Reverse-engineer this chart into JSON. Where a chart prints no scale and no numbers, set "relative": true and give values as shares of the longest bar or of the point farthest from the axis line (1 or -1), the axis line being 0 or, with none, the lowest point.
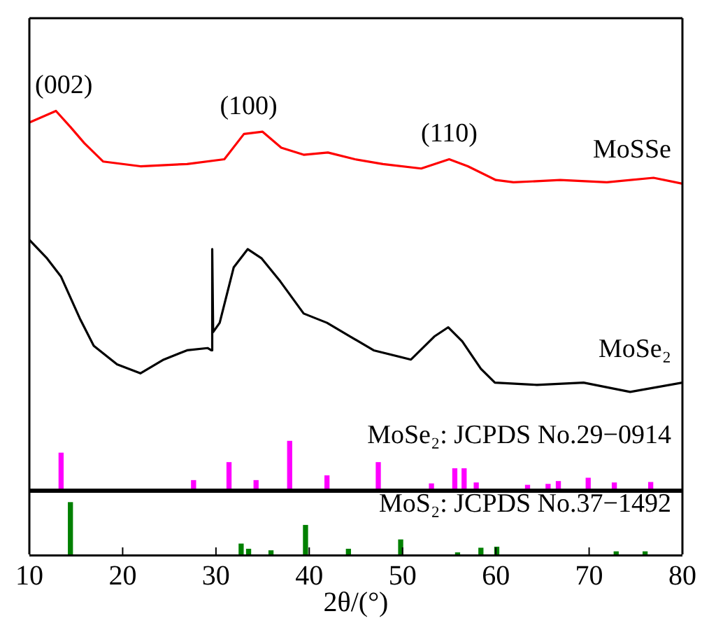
{
  "chart_data": [
    {
      "type": "line",
      "relative": true,
      "xlim": [
        10,
        80
      ],
      "tick_labels": false,
      "legend": false,
      "annotations": [
        {
          "text": "(002)",
          "x": 12.85,
          "y": 1.0
        },
        {
          "text": "(100)",
          "x": 33.5,
          "y": 0.926
        },
        {
          "text": "(110)",
          "x": 55,
          "y": 0.828
        }
      ],
      "series": [
        {
          "name": "MoSSe",
          "color": "#ff0000",
          "x": [
            10,
            12.85,
            14.4,
            15.9,
            17.9,
            21.9,
            26.9,
            30.9,
            33,
            35,
            37,
            39.4,
            42,
            44.9,
            47.9,
            52,
            55,
            57,
            60,
            61.9,
            66.9,
            71.9,
            76.9,
            80
          ],
          "values": [
            0.959,
            1.0,
            0.943,
            0.885,
            0.82,
            0.803,
            0.811,
            0.828,
            0.918,
            0.926,
            0.869,
            0.844,
            0.852,
            0.828,
            0.811,
            0.795,
            0.828,
            0.803,
            0.754,
            0.746,
            0.754,
            0.746,
            0.762,
            0.741
          ]
        },
        {
          "name": "MoSe₂",
          "color": "#000000",
          "x": [
            10,
            11.9,
            13.4,
            15.4,
            16.9,
            19.4,
            21.9,
            24.4,
            26.9,
            29.1,
            29.5,
            29.6,
            29.7,
            30.4,
            31.9,
            33.4,
            34.9,
            36.9,
            39.4,
            41.9,
            44.4,
            46.9,
            50.9,
            53.4,
            54.9,
            56.4,
            58.4,
            59.9,
            64.4,
            69.4,
            74.4,
            80
          ],
          "values": [
            0.541,
            0.475,
            0.41,
            0.262,
            0.164,
            0.098,
            0.066,
            0.115,
            0.148,
            0.156,
            0.148,
            0.508,
            0.213,
            0.246,
            0.443,
            0.508,
            0.475,
            0.393,
            0.279,
            0.246,
            0.197,
            0.148,
            0.115,
            0.197,
            0.23,
            0.18,
            0.082,
            0.033,
            0.025,
            0.033,
            0,
            0.033
          ]
        }
      ]
    },
    {
      "type": "bar",
      "relative": true,
      "xlim": [
        10,
        80
      ],
      "tick_labels": false,
      "color": "#ff00ff",
      "annotations": [
        "MoSe₂: JCPDS No.29−0914"
      ],
      "x": [
        13.4,
        27.6,
        31.4,
        34.3,
        37.9,
        41.9,
        47.4,
        53.1,
        55.6,
        56.6,
        57.9,
        63.4,
        65.6,
        66.7,
        69.9,
        72.7,
        76.6
      ],
      "values": [
        0.75,
        0.17,
        0.55,
        0.17,
        1,
        0.27,
        0.55,
        0.1,
        0.42,
        0.42,
        0.12,
        0.07,
        0.09,
        0.15,
        0.22,
        0.12,
        0.13
      ]
    },
    {
      "type": "bar",
      "relative": true,
      "xlim": [
        10,
        80
      ],
      "xticks": [
        10,
        20,
        30,
        40,
        50,
        60,
        70,
        80
      ],
      "tick_labels": "x",
      "xlabel": "2θ/(°)",
      "color": "#008000",
      "annotations": [
        "MoS₂: JCPDS No.37−1492"
      ],
      "x": [
        14.4,
        32.7,
        33.5,
        35.9,
        39.6,
        44.2,
        49.8,
        55.9,
        58.4,
        60.1,
        72.9,
        76
      ],
      "values": [
        1,
        0.2,
        0.1,
        0.07,
        0.56,
        0.1,
        0.28,
        0.03,
        0.12,
        0.14,
        0.05,
        0.05
      ]
    }
  ]
}
